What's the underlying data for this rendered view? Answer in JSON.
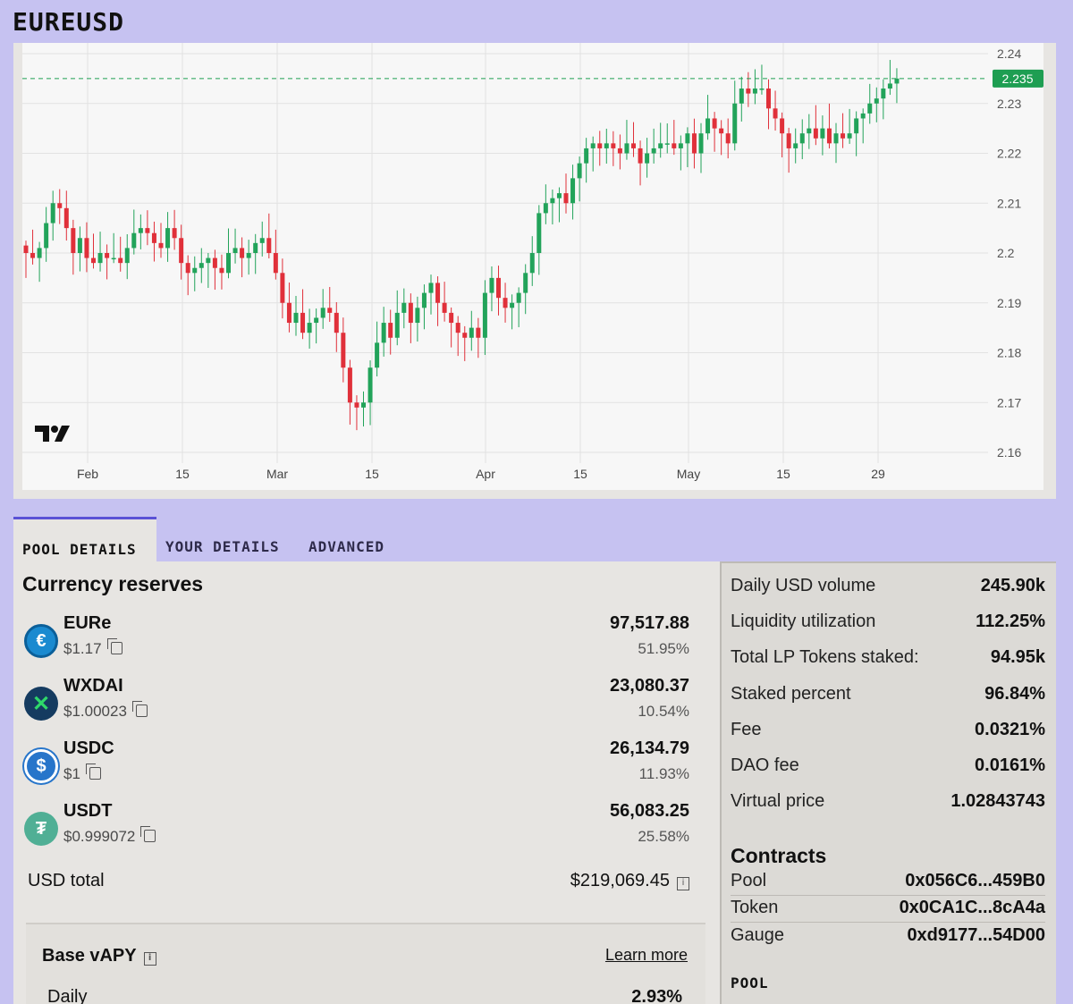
{
  "pair_title": "EUREUSD",
  "chart_data": {
    "type": "candlestick",
    "ylim": [
      2.16,
      2.24
    ],
    "y_ticks": [
      "2.24",
      "2.23",
      "2.22",
      "2.21",
      "2.2",
      "2.19",
      "2.18",
      "2.17",
      "2.16"
    ],
    "x_ticks": [
      "Feb",
      "15",
      "Mar",
      "15",
      "Apr",
      "15",
      "May",
      "15",
      "29"
    ],
    "last_price_label": "2.235",
    "last_price": 2.235,
    "colors": {
      "up": "#22a35a",
      "down": "#e0303a",
      "last_line": "#1e9e52",
      "grid": "#e2e2e2"
    },
    "logo": "tradingview-logo",
    "closes": [
      2.2,
      2.199,
      2.201,
      2.206,
      2.21,
      2.209,
      2.205,
      2.2,
      2.203,
      2.199,
      2.198,
      2.2,
      2.199,
      2.199,
      2.198,
      2.201,
      2.204,
      2.205,
      2.204,
      2.202,
      2.201,
      2.205,
      2.203,
      2.198,
      2.196,
      2.197,
      2.198,
      2.199,
      2.197,
      2.196,
      2.2,
      2.201,
      2.199,
      2.2,
      2.202,
      2.203,
      2.2,
      2.196,
      2.19,
      2.186,
      2.188,
      2.184,
      2.186,
      2.187,
      2.189,
      2.188,
      2.184,
      2.177,
      2.17,
      2.169,
      2.17,
      2.177,
      2.182,
      2.186,
      2.183,
      2.188,
      2.19,
      2.186,
      2.189,
      2.192,
      2.194,
      2.19,
      2.188,
      2.186,
      2.184,
      2.183,
      2.185,
      2.183,
      2.192,
      2.195,
      2.191,
      2.189,
      2.19,
      2.192,
      2.196,
      2.2,
      2.208,
      2.21,
      2.211,
      2.212,
      2.21,
      2.215,
      2.218,
      2.221,
      2.222,
      2.221,
      2.222,
      2.221,
      2.22,
      2.222,
      2.221,
      2.218,
      2.22,
      2.221,
      2.222,
      2.222,
      2.221,
      2.222,
      2.224,
      2.22,
      2.224,
      2.227,
      2.225,
      2.224,
      2.222,
      2.23,
      2.233,
      2.232,
      2.233,
      2.233,
      2.229,
      2.227,
      2.224,
      2.221,
      2.222,
      2.224,
      2.225,
      2.223,
      2.225,
      2.222,
      2.224,
      2.223,
      2.224,
      2.227,
      2.228,
      2.23,
      2.231,
      2.233,
      2.234,
      2.235
    ]
  },
  "tabs": [
    {
      "label": "POOL DETAILS",
      "active": true
    },
    {
      "label": "YOUR DETAILS",
      "active": false
    },
    {
      "label": "ADVANCED",
      "active": false
    }
  ],
  "reserves": {
    "title": "Currency reserves",
    "coins": [
      {
        "symbol": "EURe",
        "price": "$1.17",
        "amount": "97,517.88",
        "pct": "51.95%",
        "icon": "eure-coin-icon",
        "color": "#1a8ad0"
      },
      {
        "symbol": "WXDAI",
        "price": "$1.00023",
        "amount": "23,080.37",
        "pct": "10.54%",
        "icon": "wxdai-coin-icon",
        "color": "#153b60"
      },
      {
        "symbol": "USDC",
        "price": "$1",
        "amount": "26,134.79",
        "pct": "11.93%",
        "icon": "usdc-coin-icon",
        "color": "#2775ca"
      },
      {
        "symbol": "USDT",
        "price": "$0.999072",
        "amount": "56,083.25",
        "pct": "25.58%",
        "icon": "usdt-coin-icon",
        "color": "#50af95"
      }
    ],
    "usd_total_label": "USD total",
    "usd_total_value": "$219,069.45"
  },
  "apy": {
    "title": "Base vAPY",
    "learn_more": "Learn more",
    "daily_label": "Daily",
    "daily_value": "2.93%"
  },
  "stats": [
    {
      "label": "Daily USD volume",
      "value": "245.90k"
    },
    {
      "label": "Liquidity utilization",
      "value": "112.25%"
    },
    {
      "label": "Total LP Tokens staked:",
      "value": "94.95k"
    },
    {
      "label": "Staked percent",
      "value": "96.84%"
    },
    {
      "label": "Fee",
      "value": "0.0321%"
    },
    {
      "label": "DAO fee",
      "value": "0.0161%"
    },
    {
      "label": "Virtual price",
      "value": "1.02843743"
    }
  ],
  "contracts": {
    "title": "Contracts",
    "rows": [
      {
        "label": "Pool",
        "value": "0x056C6...459B0"
      },
      {
        "label": "Token",
        "value": "0x0CA1C...8cA4a"
      },
      {
        "label": "Gauge",
        "value": "0xd9177...54D00"
      }
    ]
  },
  "pool_subtitle": "POOL"
}
